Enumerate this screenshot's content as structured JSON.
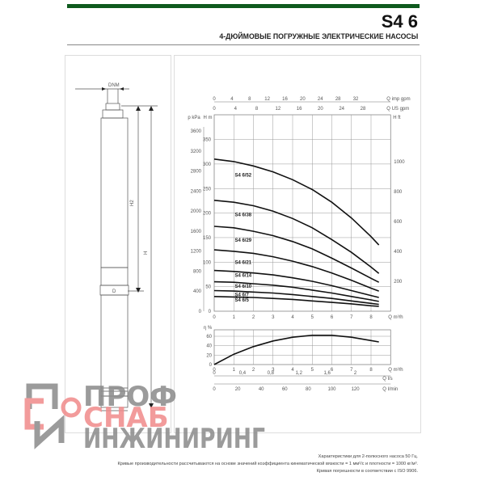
{
  "header": {
    "title": "S4 6",
    "subtitle": "4-ДЮЙМОВЫЕ ПОГРУЖНЫЕ ЭЛЕКТРИЧЕСКИЕ НАСОСЫ",
    "accent": "#0f5a1e"
  },
  "drawing": {
    "dn_label": "DNM",
    "h1_label": "H2",
    "h_label": "H",
    "d_label": "D"
  },
  "chart_data": [
    {
      "type": "line",
      "x": [
        0,
        1,
        2,
        3,
        4,
        5,
        6,
        7,
        8,
        8.4
      ],
      "xlabel": "Q m³/h",
      "xlim": [
        0,
        9
      ],
      "xticks": [
        0,
        1,
        2,
        3,
        4,
        5,
        6,
        7,
        8
      ],
      "ylabel": "H m",
      "ylim": [
        0,
        380
      ],
      "yticks": [
        0,
        50,
        100,
        150,
        200,
        250,
        300,
        350
      ],
      "secondary_axes": {
        "pressure": {
          "label": "p kPa",
          "ticks": [
            0,
            400,
            800,
            1200,
            1600,
            2000,
            2400,
            2800,
            3200,
            3600
          ]
        },
        "feet": {
          "label": "H ft",
          "ticks": [
            200,
            400,
            600,
            800,
            1000
          ]
        },
        "imp_gpm": {
          "label": "Q imp gpm",
          "ticks": [
            0,
            4,
            8,
            12,
            16,
            20,
            24,
            28,
            32
          ]
        },
        "us_gpm": {
          "label": "Q US gpm",
          "ticks": [
            0,
            4,
            8,
            12,
            16,
            20,
            24,
            28
          ]
        }
      },
      "grid": true,
      "series": [
        {
          "name": "S4 6/52",
          "values": [
            310,
            305,
            296,
            284,
            268,
            248,
            222,
            190,
            152,
            135
          ]
        },
        {
          "name": "S4 6/38",
          "values": [
            226,
            222,
            215,
            204,
            189,
            170,
            146,
            120,
            90,
            77
          ]
        },
        {
          "name": "S4 6/29",
          "values": [
            173,
            170,
            163,
            154,
            142,
            127,
            108,
            88,
            67,
            59
          ]
        },
        {
          "name": "S4 6/21",
          "values": [
            125,
            122,
            118,
            111,
            102,
            91,
            78,
            63,
            47,
            41
          ]
        },
        {
          "name": "S4 6/14",
          "values": [
            83,
            81,
            78,
            74,
            68,
            61,
            52,
            42,
            32,
            28
          ]
        },
        {
          "name": "S4 6/10",
          "values": [
            60,
            59,
            56,
            53,
            49,
            43,
            37,
            30,
            23,
            20
          ]
        },
        {
          "name": "S4 6/7",
          "values": [
            42,
            41,
            39,
            37,
            34,
            30,
            26,
            21,
            16,
            14
          ]
        },
        {
          "name": "S4 6/5",
          "values": [
            30,
            29,
            28,
            26,
            24,
            21,
            18,
            15,
            11,
            10
          ]
        }
      ]
    },
    {
      "type": "line",
      "x": [
        0,
        1,
        2,
        3,
        4,
        5,
        6,
        7,
        8,
        8.4
      ],
      "xlabel": "Q m³/h",
      "xlim": [
        0,
        9
      ],
      "xticks": [
        0,
        1,
        2,
        3,
        4,
        5,
        6,
        7,
        8
      ],
      "ylabel": "η %",
      "ylim": [
        0,
        70
      ],
      "yticks": [
        0,
        20,
        40,
        60
      ],
      "values": [
        0,
        22,
        38,
        50,
        58,
        62,
        62,
        58,
        51,
        48
      ],
      "secondary_axes": {
        "ls": {
          "label": "Q l/s",
          "ticks": [
            "0",
            "0,4",
            "0,8",
            "1,2",
            "1,6",
            "2"
          ]
        },
        "lmin": {
          "label": "Q l/min",
          "ticks": [
            0,
            20,
            40,
            60,
            80,
            100,
            120
          ]
        }
      }
    }
  ],
  "footnotes": [
    "Характеристики для 2-полюсного насоса 50 Гц.",
    "Кривые производительности рассчитываются на основе значений коэффициента кинематической вязкости = 1 мм²/с и плотности = 1000 кг/м³.",
    "Кривая погрешности в соответствии с ISO 9906."
  ],
  "watermark": {
    "line1": "ПРОФ",
    "line2": "СНАБ",
    "line3": "ИНЖИНИРИНГ",
    "colors": {
      "gray": "#8a8a8a",
      "red": "#f08a8a"
    }
  }
}
